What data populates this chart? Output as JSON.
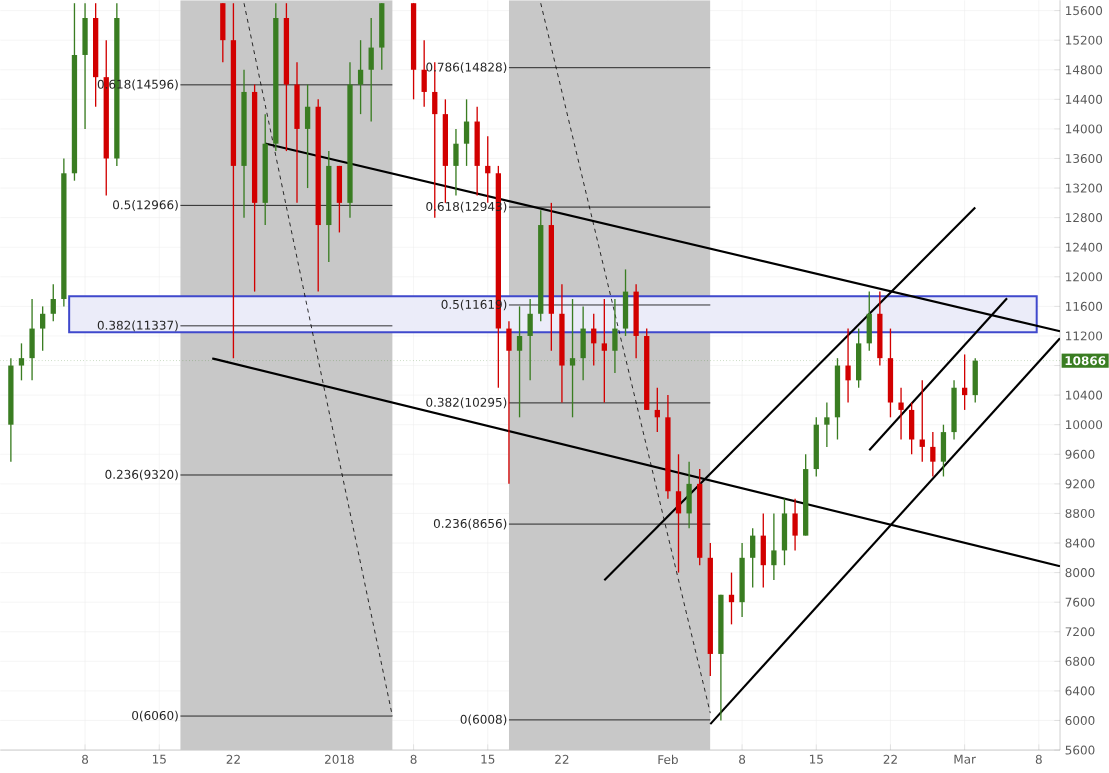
{
  "chart_data": {
    "type": "candlestick",
    "xlim": [
      "2017-11-30",
      "2018-03-10"
    ],
    "ylim": [
      5600,
      15740
    ],
    "xticks": [
      {
        "value": "2017-12-08",
        "label": "8"
      },
      {
        "value": "2017-12-15",
        "label": "15"
      },
      {
        "value": "2017-12-22",
        "label": "22"
      },
      {
        "value": "2018-01-01",
        "label": "2018"
      },
      {
        "value": "2018-01-08",
        "label": "8"
      },
      {
        "value": "2018-01-15",
        "label": "15"
      },
      {
        "value": "2018-01-22",
        "label": "22"
      },
      {
        "value": "2018-02-01",
        "label": "Feb"
      },
      {
        "value": "2018-02-08",
        "label": "8"
      },
      {
        "value": "2018-02-15",
        "label": "15"
      },
      {
        "value": "2018-02-22",
        "label": "22"
      },
      {
        "value": "2018-03-01",
        "label": "Mar"
      },
      {
        "value": "2018-03-08",
        "label": "8"
      }
    ],
    "yticks": [
      5600,
      6000,
      6400,
      6800,
      7200,
      7600,
      8000,
      8400,
      8800,
      9200,
      9600,
      10000,
      10400,
      {
        "value": 10800,
        "label": null
      },
      11200,
      11600,
      12000,
      12400,
      12800,
      13200,
      13600,
      14000,
      14400,
      14800,
      15200,
      15600
    ],
    "grid": true,
    "x": [
      "2017-12-01",
      "2017-12-02",
      "2017-12-03",
      "2017-12-04",
      "2017-12-05",
      "2017-12-06",
      "2017-12-07",
      "2017-12-08",
      "2017-12-09",
      "2017-12-10",
      "2017-12-11",
      "2017-12-21",
      "2017-12-22",
      "2017-12-23",
      "2017-12-24",
      "2017-12-25",
      "2017-12-26",
      "2017-12-27",
      "2017-12-28",
      "2017-12-29",
      "2017-12-30",
      "2017-12-31",
      "2018-01-01",
      "2018-01-02",
      "2018-01-03",
      "2018-01-04",
      "2018-01-05",
      "2018-01-08",
      "2018-01-09",
      "2018-01-10",
      "2018-01-11",
      "2018-01-12",
      "2018-01-13",
      "2018-01-14",
      "2018-01-15",
      "2018-01-16",
      "2018-01-17",
      "2018-01-18",
      "2018-01-19",
      "2018-01-20",
      "2018-01-21",
      "2018-01-22",
      "2018-01-23",
      "2018-01-24",
      "2018-01-25",
      "2018-01-26",
      "2018-01-27",
      "2018-01-28",
      "2018-01-29",
      "2018-01-30",
      "2018-01-31",
      "2018-02-01",
      "2018-02-02",
      "2018-02-03",
      "2018-02-04",
      "2018-02-05",
      "2018-02-06",
      "2018-02-07",
      "2018-02-08",
      "2018-02-09",
      "2018-02-10",
      "2018-02-11",
      "2018-02-12",
      "2018-02-13",
      "2018-02-14",
      "2018-02-15",
      "2018-02-16",
      "2018-02-17",
      "2018-02-18",
      "2018-02-19",
      "2018-02-20",
      "2018-02-21",
      "2018-02-22",
      "2018-02-23",
      "2018-02-24",
      "2018-02-25",
      "2018-02-26",
      "2018-02-27",
      "2018-02-28",
      "2018-03-01",
      "2018-03-02"
    ],
    "ohlc": [
      [
        10000,
        10900,
        9500,
        10800
      ],
      [
        10800,
        11100,
        10600,
        10900
      ],
      [
        10900,
        11700,
        10600,
        11300
      ],
      [
        11300,
        11600,
        11000,
        11500
      ],
      [
        11500,
        11900,
        11400,
        11700
      ],
      [
        11700,
        13600,
        11600,
        13400
      ],
      [
        13400,
        15700,
        13300,
        15000
      ],
      [
        15000,
        15700,
        14000,
        15500
      ],
      [
        15500,
        15700,
        14300,
        14700
      ],
      [
        14700,
        15200,
        13100,
        13600
      ],
      [
        13600,
        15700,
        13500,
        15500
      ],
      [
        15700,
        15700,
        14900,
        15200
      ],
      [
        15200,
        15700,
        10900,
        13500
      ],
      [
        13500,
        14800,
        12800,
        14500
      ],
      [
        14500,
        14600,
        11800,
        13000
      ],
      [
        13000,
        14200,
        12700,
        13800
      ],
      [
        13800,
        15700,
        13700,
        15500
      ],
      [
        15500,
        15700,
        13700,
        14600
      ],
      [
        14600,
        14900,
        13000,
        14000
      ],
      [
        14000,
        14600,
        13200,
        14300
      ],
      [
        14300,
        14400,
        11800,
        12700
      ],
      [
        12700,
        13700,
        12200,
        13500
      ],
      [
        13500,
        13500,
        12600,
        13000
      ],
      [
        13000,
        14900,
        12800,
        14600
      ],
      [
        14600,
        15200,
        14200,
        14800
      ],
      [
        14800,
        15500,
        14100,
        15100
      ],
      [
        15100,
        15700,
        14800,
        15700
      ],
      [
        15700,
        15700,
        14400,
        14800
      ],
      [
        14800,
        15200,
        14300,
        14500
      ],
      [
        14500,
        14900,
        12800,
        14200
      ],
      [
        14200,
        14400,
        13000,
        13500
      ],
      [
        13500,
        14000,
        13100,
        13800
      ],
      [
        13800,
        14400,
        13500,
        14100
      ],
      [
        14100,
        14300,
        13100,
        13500
      ],
      [
        13500,
        13900,
        13000,
        13400
      ],
      [
        13400,
        13500,
        10500,
        11300
      ],
      [
        11300,
        11400,
        9200,
        11000
      ],
      [
        11000,
        11600,
        10100,
        11200
      ],
      [
        11200,
        11700,
        10600,
        11500
      ],
      [
        11500,
        12900,
        11400,
        12700
      ],
      [
        12700,
        13000,
        11000,
        11500
      ],
      [
        11500,
        11900,
        10300,
        10800
      ],
      [
        10800,
        11700,
        10100,
        10900
      ],
      [
        10900,
        11600,
        10600,
        11300
      ],
      [
        11300,
        11500,
        10800,
        11100
      ],
      [
        11100,
        11700,
        10300,
        11000
      ],
      [
        11000,
        11700,
        10700,
        11300
      ],
      [
        11300,
        12100,
        11200,
        11800
      ],
      [
        11800,
        11900,
        10900,
        11200
      ],
      [
        11200,
        11300,
        10200,
        10200
      ],
      [
        10200,
        10500,
        9900,
        10100
      ],
      [
        10100,
        10400,
        9000,
        9100
      ],
      [
        9100,
        9600,
        8000,
        8800
      ],
      [
        8800,
        9500,
        8600,
        9200
      ],
      [
        9200,
        9400,
        8100,
        8200
      ],
      [
        8200,
        8400,
        6600,
        6900
      ],
      [
        6900,
        7700,
        6000,
        7700
      ],
      [
        7700,
        8000,
        7300,
        7600
      ],
      [
        7600,
        8400,
        7400,
        8200
      ],
      [
        8200,
        8600,
        7800,
        8500
      ],
      [
        8500,
        8800,
        7800,
        8100
      ],
      [
        8100,
        8800,
        7900,
        8300
      ],
      [
        8300,
        9000,
        8100,
        8800
      ],
      [
        8800,
        9000,
        8300,
        8500
      ],
      [
        8500,
        9600,
        8500,
        9400
      ],
      [
        9400,
        10100,
        9300,
        10000
      ],
      [
        10000,
        10300,
        9700,
        10100
      ],
      [
        10100,
        10900,
        9800,
        10800
      ],
      [
        10800,
        11300,
        10300,
        10600
      ],
      [
        10600,
        11300,
        10500,
        11100
      ],
      [
        11100,
        11800,
        11000,
        11500
      ],
      [
        11500,
        11800,
        10800,
        10900
      ],
      [
        10900,
        11300,
        10100,
        10300
      ],
      [
        10300,
        10500,
        9800,
        10200
      ],
      [
        10200,
        10300,
        9600,
        9800
      ],
      [
        9800,
        10600,
        9500,
        9700
      ],
      [
        9700,
        9900,
        9300,
        9500
      ],
      [
        9500,
        10000,
        9300,
        9900
      ],
      [
        9900,
        10600,
        9800,
        10500
      ],
      [
        10500,
        10950,
        10200,
        10400
      ],
      [
        10400,
        10900,
        10300,
        10866
      ]
    ],
    "series": [
      {
        "type": "line",
        "name": "0(6060)",
        "color": "#000000",
        "x": [
          "2017-12-17",
          "2018-01-06"
        ],
        "values": [
          6060,
          6060
        ]
      },
      {
        "type": "line",
        "name": "0.236(9320)",
        "color": "#000000",
        "x": [
          "2017-12-17",
          "2018-01-06"
        ],
        "values": [
          9320,
          9320
        ]
      },
      {
        "type": "line",
        "name": "0.382(11337)",
        "color": "#000000",
        "x": [
          "2017-12-17",
          "2018-01-06"
        ],
        "values": [
          11337,
          11337
        ]
      },
      {
        "type": "line",
        "name": "0.5(12966)",
        "color": "#000000",
        "x": [
          "2017-12-17",
          "2018-01-06"
        ],
        "values": [
          12966,
          12966
        ]
      },
      {
        "type": "line",
        "name": "0.618(14596)",
        "color": "#000000",
        "x": [
          "2017-12-17",
          "2018-01-06"
        ],
        "values": [
          14596,
          14596
        ]
      },
      {
        "type": "line",
        "name": "0(6008)",
        "color": "#000000",
        "x": [
          "2018-01-17",
          "2018-02-05"
        ],
        "values": [
          6008,
          6008
        ]
      },
      {
        "type": "line",
        "name": "0.236(8656)",
        "color": "#000000",
        "x": [
          "2018-01-17",
          "2018-02-05"
        ],
        "values": [
          8656,
          8656
        ]
      },
      {
        "type": "line",
        "name": "0.382(10295)",
        "color": "#000000",
        "x": [
          "2018-01-17",
          "2018-02-05"
        ],
        "values": [
          10295,
          10295
        ]
      },
      {
        "type": "line",
        "name": "0.5(11619)",
        "color": "#000000",
        "x": [
          "2018-01-17",
          "2018-02-05"
        ],
        "values": [
          11619,
          11619
        ]
      },
      {
        "type": "line",
        "name": "0.618(12943)",
        "color": "#000000",
        "x": [
          "2018-01-17",
          "2018-02-05"
        ],
        "values": [
          12943,
          12943
        ]
      },
      {
        "type": "line",
        "name": "0.786(14828)",
        "color": "#000000",
        "x": [
          "2018-01-17",
          "2018-02-05"
        ],
        "values": [
          14828,
          14828
        ]
      },
      {
        "type": "line",
        "color": "#000000",
        "line_style": "dashed",
        "x": [
          "2017-12-23",
          "2018-01-06"
        ],
        "values": [
          15700,
          6060
        ]
      },
      {
        "type": "line",
        "color": "#000000",
        "line_style": "dashed",
        "x": [
          "2018-01-20",
          "2018-02-05"
        ],
        "values": [
          15700,
          6100
        ]
      },
      {
        "type": "line",
        "color": "#000000",
        "x": [
          "2017-12-25",
          "2018-03-10"
        ],
        "values": [
          13803,
          11263
        ]
      },
      {
        "type": "line",
        "color": "#000000",
        "x": [
          "2017-12-20",
          "2018-03-10"
        ],
        "values": [
          10897,
          8086
        ]
      },
      {
        "type": "line",
        "color": "#000000",
        "x": [
          "2018-01-26",
          "2018-03-02"
        ],
        "values": [
          7897,
          12938
        ]
      },
      {
        "type": "line",
        "color": "#000000",
        "x": [
          "2018-02-05",
          "2018-03-10"
        ],
        "values": [
          5951,
          11168
        ]
      },
      {
        "type": "line",
        "color": "#000000",
        "x": [
          "2018-02-20",
          "2018-03-05"
        ],
        "values": [
          9654,
          11711
        ]
      }
    ],
    "bands": [
      {
        "axis": "x",
        "from": "2017-12-17",
        "to": "2018-01-06",
        "color": "#c8c8c8"
      },
      {
        "axis": "x",
        "from": "2018-01-17",
        "to": "2018-02-05",
        "color": "#c8c8c8"
      },
      {
        "axis": "y",
        "from": 11249,
        "to": 11738,
        "color": "#3f48cc"
      }
    ],
    "ref_lines": [
      {
        "axis": "y",
        "value": 10866,
        "label": "10866",
        "color": "#3a7d22",
        "line_style": "dotted"
      }
    ]
  }
}
